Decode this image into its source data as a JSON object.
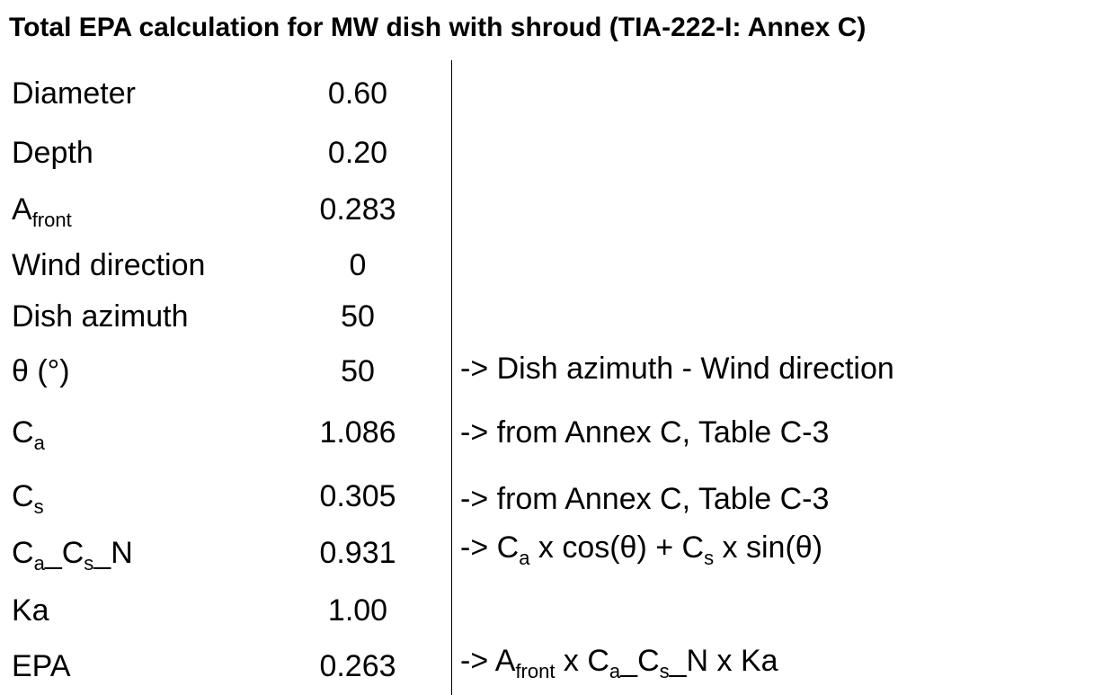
{
  "header": {
    "title": "Total EPA calculation for MW dish with shroud (TIA-222-I: Annex C)"
  },
  "table": {
    "rows": [
      {
        "label": [
          {
            "text": "Diameter"
          }
        ],
        "value": "0.60"
      },
      {
        "label": [
          {
            "text": "Depth"
          }
        ],
        "value": "0.20"
      },
      {
        "label": [
          {
            "text": "A"
          },
          {
            "text": "front",
            "sub": true
          }
        ],
        "value": "0.283"
      },
      {
        "label": [
          {
            "text": "Wind direction"
          }
        ],
        "value": "0"
      },
      {
        "label": [
          {
            "text": "Dish azimuth"
          }
        ],
        "value": "50"
      },
      {
        "label": [
          {
            "text": "θ (°)"
          }
        ],
        "value": "50",
        "note": [
          {
            "text": "-> Dish azimuth - Wind direction"
          }
        ]
      },
      {
        "label": [
          {
            "text": "C"
          },
          {
            "text": "a",
            "sub": true
          }
        ],
        "value": "1.086",
        "note": [
          {
            "text": "-> from Annex C, Table C-3"
          }
        ]
      },
      {
        "label": [
          {
            "text": "C"
          },
          {
            "text": "s",
            "sub": true
          }
        ],
        "value": "0.305",
        "note": [
          {
            "text": "-> from Annex C, Table C-3"
          }
        ]
      },
      {
        "label": [
          {
            "text": "C"
          },
          {
            "text": "a",
            "sub": true
          },
          {
            "text": "_C"
          },
          {
            "text": "s",
            "sub": true
          },
          {
            "text": "_N"
          }
        ],
        "value": "0.931",
        "note": [
          {
            "text": "-> C"
          },
          {
            "text": "a",
            "sub": true
          },
          {
            "text": " x cos(θ) + C"
          },
          {
            "text": "s",
            "sub": true
          },
          {
            "text": " x sin(θ)"
          }
        ]
      },
      {
        "label": [
          {
            "text": "Ka"
          }
        ],
        "value": "1.00"
      },
      {
        "label": [
          {
            "text": "EPA"
          }
        ],
        "value": "0.263",
        "note": [
          {
            "text": "-> A"
          },
          {
            "text": "front",
            "sub": true
          },
          {
            "text": " x C"
          },
          {
            "text": "a",
            "sub": true
          },
          {
            "text": "_C"
          },
          {
            "text": "s",
            "sub": true
          },
          {
            "text": "_N x Ka"
          }
        ]
      }
    ]
  }
}
